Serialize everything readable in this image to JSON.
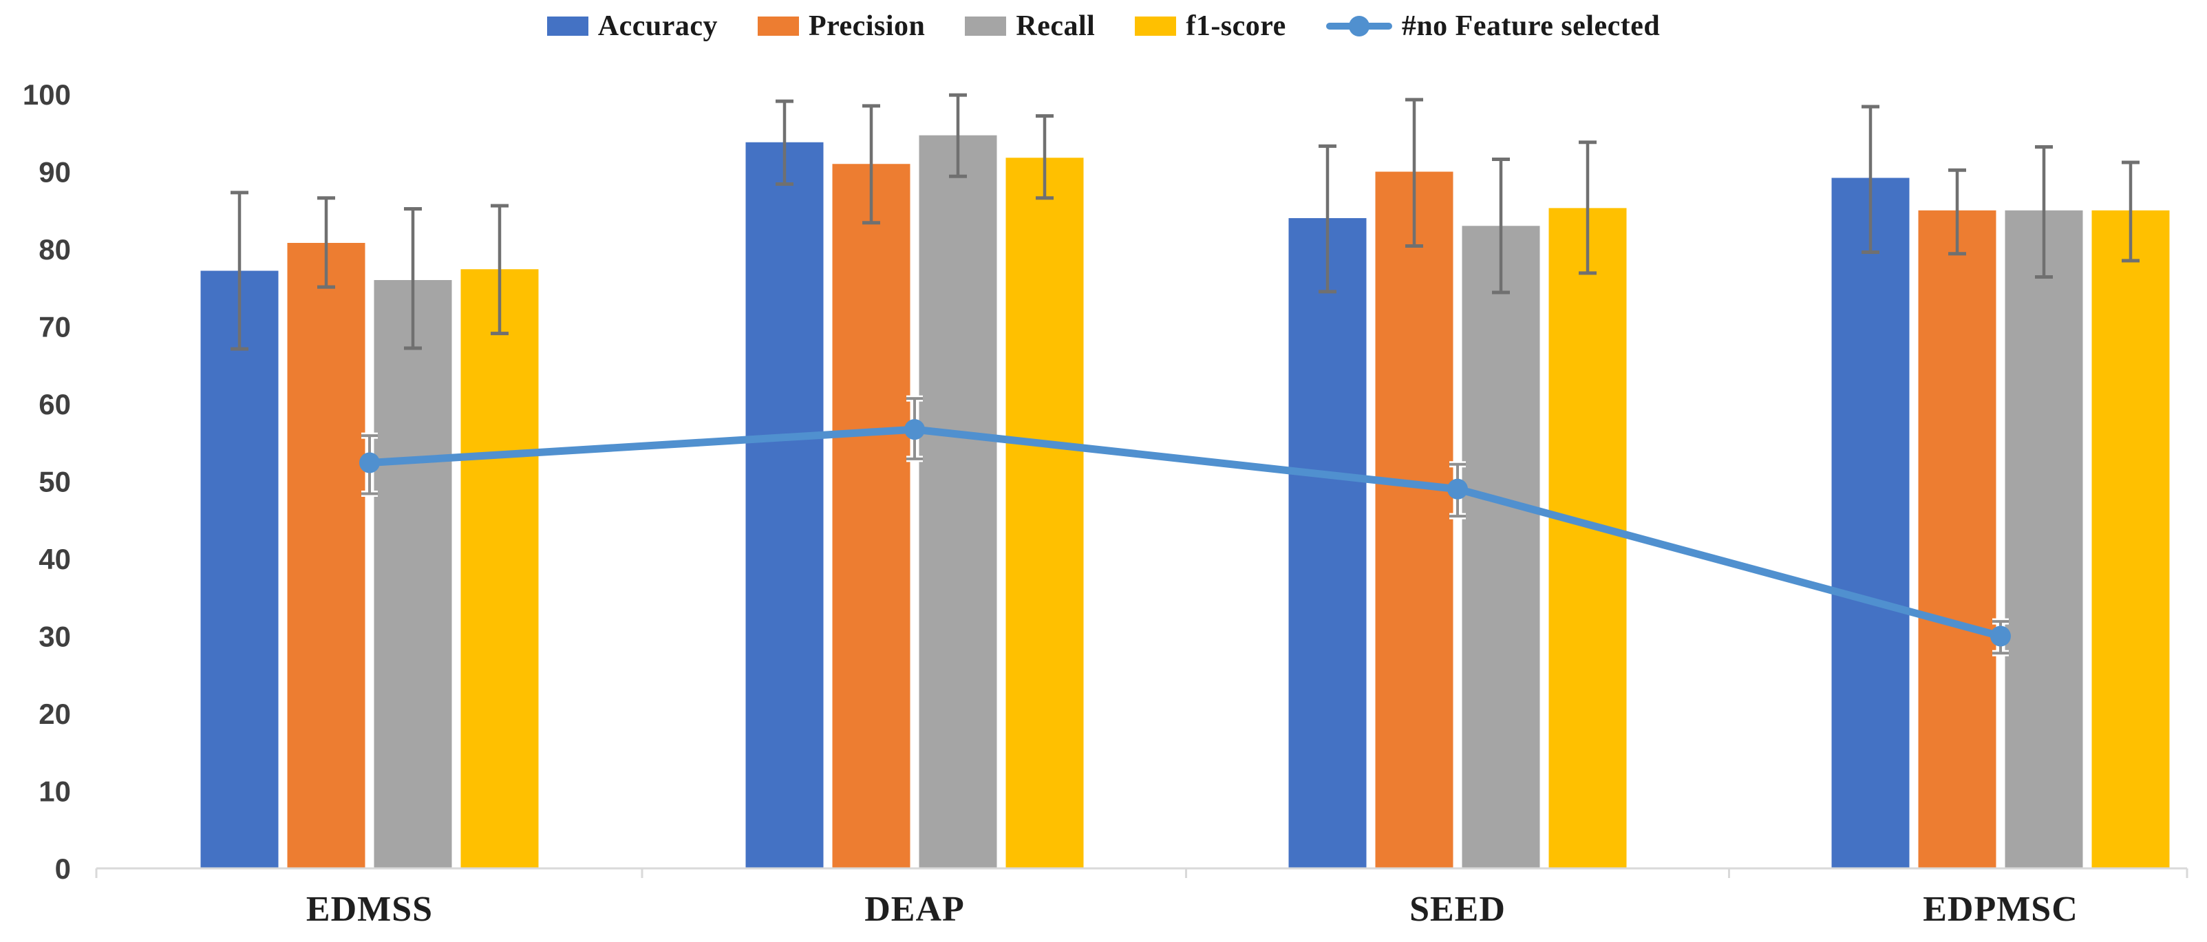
{
  "chart_data": {
    "type": "bar+line",
    "title": "",
    "categories": [
      "EDMSS",
      "DEAP",
      "SEED",
      "EDPMSC"
    ],
    "y_axis": {
      "min": 0,
      "max": 100,
      "tick_step": 10,
      "ticks": [
        0,
        10,
        20,
        30,
        40,
        50,
        60,
        70,
        80,
        90,
        100
      ]
    },
    "grid": false,
    "legend_position": "top-center",
    "bar_series": [
      {
        "name": "Accuracy",
        "color": "#4472C4",
        "values": [
          77.2,
          93.8,
          84.0,
          89.2
        ],
        "error_low": [
          67.1,
          88.4,
          74.5,
          79.6
        ],
        "error_high": [
          87.3,
          99.1,
          93.3,
          98.4
        ]
      },
      {
        "name": "Precision",
        "color": "#ED7D31",
        "values": [
          80.8,
          91.0,
          90.0,
          85.0
        ],
        "error_low": [
          75.1,
          83.4,
          80.4,
          79.4
        ],
        "error_high": [
          86.6,
          98.5,
          99.3,
          90.2
        ]
      },
      {
        "name": "Recall",
        "color": "#A5A5A5",
        "values": [
          76.0,
          94.7,
          83.0,
          85.0
        ],
        "error_low": [
          67.2,
          89.4,
          74.4,
          76.4
        ],
        "error_high": [
          85.2,
          99.9,
          91.6,
          93.2
        ]
      },
      {
        "name": "f1-score",
        "color": "#FFC000",
        "values": [
          77.4,
          91.8,
          85.3,
          85.0
        ],
        "error_low": [
          69.1,
          86.6,
          76.9,
          78.5
        ],
        "error_high": [
          85.6,
          97.2,
          93.8,
          91.2
        ]
      }
    ],
    "line_series": [
      {
        "name": "#no Feature selected",
        "color": "#5090CF",
        "values": [
          52.4,
          56.7,
          49.0,
          30.0
        ],
        "error_low": [
          48.4,
          52.9,
          45.5,
          27.8
        ],
        "error_high": [
          55.9,
          60.7,
          52.2,
          31.9
        ]
      }
    ],
    "error_bar_color": "#707070",
    "line_error_bar_color": "#8f8f8f",
    "axis_color": "#D9D9D9",
    "y_label_color": "#3F3F3F",
    "x_label_color": "#1F1F1F"
  }
}
